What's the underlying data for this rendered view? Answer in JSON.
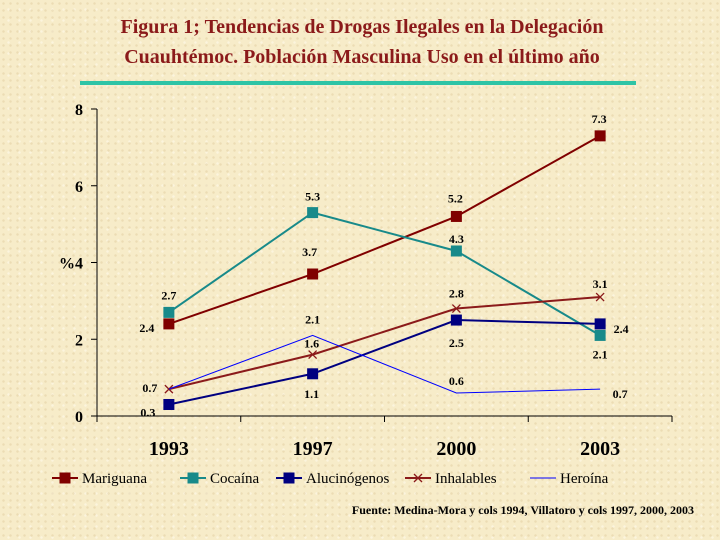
{
  "title_line1": "Figura 1; Tendencias de Drogas Ilegales en  la Delegación",
  "title_line2": "Cuauhtémoc. Población Masculina Uso en el último año",
  "source": "Fuente: Medina-Mora y cols 1994, Villatoro y cols 1997, 2000, 2003",
  "colors": {
    "title": "#8b1a1a",
    "underline": "#2ec4a6"
  },
  "chart_data": {
    "type": "line",
    "categories": [
      "1993",
      "1997",
      "2000",
      "2003"
    ],
    "ylim": [
      0,
      8
    ],
    "ytick_labels": [
      "0",
      "2",
      "%4",
      "6",
      "8"
    ],
    "ytick_values": [
      0,
      2,
      4,
      6,
      8
    ],
    "ylabel": "",
    "xlabel": "",
    "grid": false,
    "legend_position": "bottom",
    "series": [
      {
        "name": "Mariguana",
        "values": [
          2.4,
          3.7,
          5.2,
          7.3
        ],
        "labels": [
          "2.4",
          "3.7",
          "5.2",
          "7.3"
        ],
        "color": "#800000",
        "marker": "square",
        "width": 2
      },
      {
        "name": "Cocaína",
        "values": [
          2.7,
          5.3,
          4.3,
          2.1
        ],
        "labels": [
          "2.7",
          "5.3",
          "4.3",
          "2.1"
        ],
        "color": "#188a8a",
        "marker": "square",
        "width": 2
      },
      {
        "name": "Alucinógenos",
        "values": [
          0.3,
          1.1,
          2.5,
          2.4
        ],
        "labels": [
          "0.3",
          "1.1",
          "2.5",
          "2.4"
        ],
        "color": "#000080",
        "marker": "square",
        "width": 2
      },
      {
        "name": "Inhalables",
        "values": [
          0.7,
          1.6,
          2.8,
          3.1
        ],
        "labels": [
          "0.7",
          "1.6",
          "2.8",
          "3.1"
        ],
        "color": "#8b1a1a",
        "marker": "x",
        "width": 2
      },
      {
        "name": "Heroína",
        "values": [
          0.7,
          2.1,
          0.6,
          0.7
        ],
        "labels": [
          "0.7",
          "2.1",
          "0.6",
          "0.7"
        ],
        "color": "#0000ff",
        "marker": "none",
        "width": 1
      }
    ]
  }
}
